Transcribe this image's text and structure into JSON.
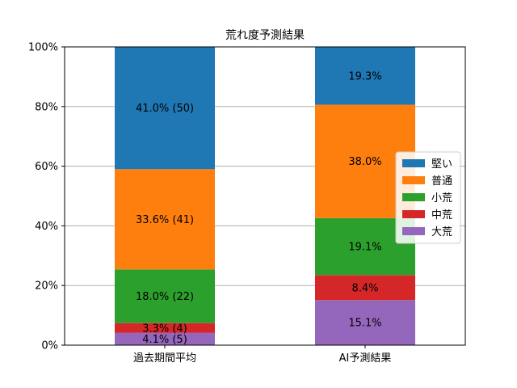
{
  "chart_data": {
    "type": "bar",
    "stacked": true,
    "title": "荒れ度予測結果",
    "xlabel": "",
    "ylabel": "",
    "ylim": [
      0,
      100
    ],
    "yticks": [
      "0%",
      "20%",
      "40%",
      "60%",
      "80%",
      "100%"
    ],
    "grid": "horizontal",
    "legend_position": "right",
    "categories": [
      "過去期間平均",
      "AI予測結果"
    ],
    "series": [
      {
        "name": "大荒",
        "color": "#9467bd",
        "values": [
          4.1,
          15.1
        ],
        "labels": [
          "4.1% (5)",
          "15.1%"
        ]
      },
      {
        "name": "中荒",
        "color": "#d62728",
        "values": [
          3.3,
          8.4
        ],
        "labels": [
          "3.3% (4)",
          "8.4%"
        ]
      },
      {
        "name": "小荒",
        "color": "#2ca02c",
        "values": [
          18.0,
          19.1
        ],
        "labels": [
          "18.0% (22)",
          "19.1%"
        ]
      },
      {
        "name": "普通",
        "color": "#ff7f0e",
        "values": [
          33.6,
          38.0
        ],
        "labels": [
          "33.6% (41)",
          "38.0%"
        ]
      },
      {
        "name": "堅い",
        "color": "#1f77b4",
        "values": [
          41.0,
          19.3
        ],
        "labels": [
          "41.0% (50)",
          "19.3%"
        ]
      }
    ],
    "legend_order": [
      "堅い",
      "普通",
      "小荒",
      "中荒",
      "大荒"
    ]
  }
}
